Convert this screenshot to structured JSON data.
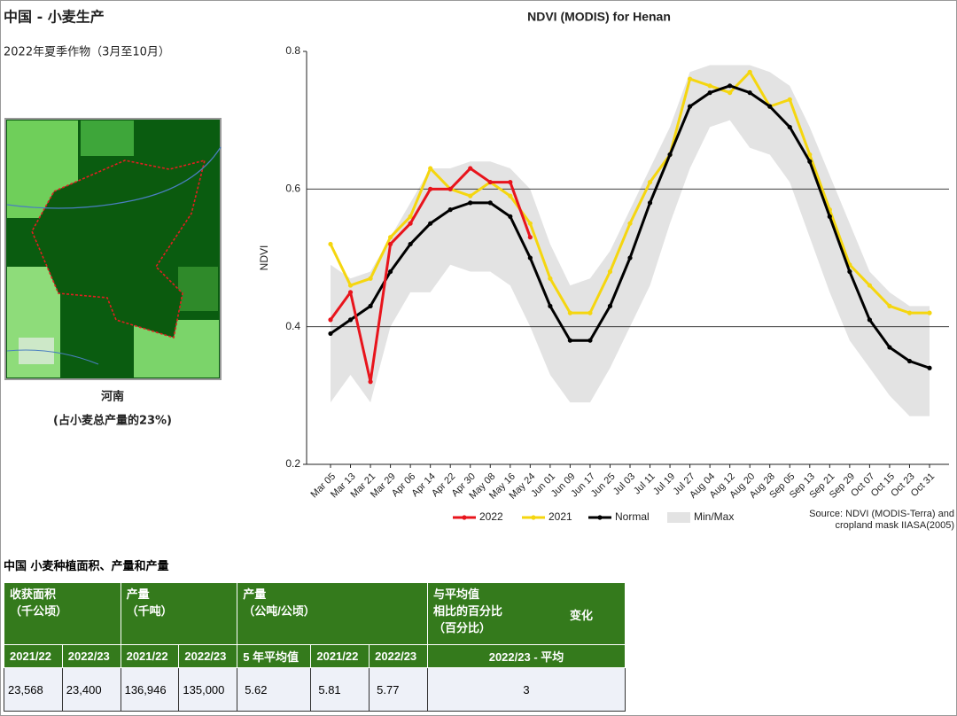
{
  "header": {
    "title": "中国 - 小麦生产",
    "subtitle": "2022年夏季作物（3月至10月）"
  },
  "map": {
    "label": "河南",
    "caption": "(占小麦总产量的23%)"
  },
  "chart_data": {
    "type": "line",
    "title": "NDVI (MODIS) for Henan",
    "y_label": "NDVI",
    "categories": [
      "Mar 05",
      "Mar 13",
      "Mar 21",
      "Mar 29",
      "Apr 06",
      "Apr 14",
      "Apr 22",
      "Apr 30",
      "May 08",
      "May 16",
      "May 24",
      "Jun 01",
      "Jun 09",
      "Jun 17",
      "Jun 25",
      "Jul 03",
      "Jul 11",
      "Jul 19",
      "Jul 27",
      "Aug 04",
      "Aug 12",
      "Aug 20",
      "Aug 28",
      "Sep 05",
      "Sep 13",
      "Sep 21",
      "Sep 29",
      "Oct 07",
      "Oct 15",
      "Oct 23",
      "Oct 31"
    ],
    "band": {
      "name": "Min/Max",
      "color": "#e3e3e3",
      "upper": [
        0.49,
        0.47,
        0.48,
        0.53,
        0.58,
        0.63,
        0.63,
        0.64,
        0.64,
        0.63,
        0.6,
        0.52,
        0.46,
        0.47,
        0.51,
        0.57,
        0.63,
        0.69,
        0.77,
        0.78,
        0.78,
        0.78,
        0.77,
        0.75,
        0.69,
        0.62,
        0.55,
        0.48,
        0.45,
        0.43,
        0.43
      ],
      "lower": [
        0.29,
        0.33,
        0.29,
        0.4,
        0.45,
        0.45,
        0.49,
        0.48,
        0.48,
        0.46,
        0.4,
        0.33,
        0.29,
        0.29,
        0.34,
        0.4,
        0.46,
        0.55,
        0.63,
        0.69,
        0.7,
        0.66,
        0.65,
        0.61,
        0.53,
        0.45,
        0.38,
        0.34,
        0.3,
        0.27,
        0.27
      ]
    },
    "series": [
      {
        "name": "2022",
        "color": "#e8141c",
        "values": [
          0.41,
          0.45,
          0.32,
          0.52,
          0.55,
          0.6,
          0.6,
          0.63,
          0.61,
          0.61,
          0.53,
          null,
          null,
          null,
          null,
          null,
          null,
          null,
          null,
          null,
          null,
          null,
          null,
          null,
          null,
          null,
          null,
          null,
          null,
          null,
          null
        ]
      },
      {
        "name": "2021",
        "color": "#f5d60f",
        "values": [
          0.52,
          0.46,
          0.47,
          0.53,
          0.56,
          0.63,
          0.6,
          0.59,
          0.61,
          0.59,
          0.55,
          0.47,
          0.42,
          0.42,
          0.48,
          0.55,
          0.61,
          0.65,
          0.76,
          0.75,
          0.74,
          0.77,
          0.72,
          0.73,
          0.65,
          0.57,
          0.49,
          0.46,
          0.43,
          0.42,
          0.42
        ]
      },
      {
        "name": "Normal",
        "color": "#000000",
        "values": [
          0.39,
          0.41,
          0.43,
          0.48,
          0.52,
          0.55,
          0.57,
          0.58,
          0.58,
          0.56,
          0.5,
          0.43,
          0.38,
          0.38,
          0.43,
          0.5,
          0.58,
          0.65,
          0.72,
          0.74,
          0.75,
          0.74,
          0.72,
          0.69,
          0.64,
          0.56,
          0.48,
          0.41,
          0.37,
          0.35,
          0.34
        ]
      }
    ],
    "ylim": [
      0.2,
      0.8
    ],
    "yticks": [
      0.2,
      0.4,
      0.6,
      0.8
    ],
    "grid": true,
    "source": [
      "Source: NDVI (MODIS-Terra) and",
      "cropland mask IIASA(2005)"
    ]
  },
  "table": {
    "title": "中国 小麦种植面积、产量和产量",
    "groups": [
      [
        "收获面积",
        "（千公顷）"
      ],
      [
        "产量",
        "（千吨）"
      ],
      [
        "产量",
        "（公吨/公顷）"
      ],
      [
        "与平均值",
        "相比的百分比",
        "（百分比）"
      ]
    ],
    "change": "变化",
    "subheaders": [
      "2021/22",
      "2022/23",
      "2021/22",
      "2022/23",
      "5 年平均值",
      "2021/22",
      "2022/23",
      "2022/23 - 平均"
    ],
    "row": [
      "23,568",
      "23,400",
      "136,946",
      "135,000",
      "5.62",
      "5.81",
      "5.77",
      "3"
    ]
  }
}
